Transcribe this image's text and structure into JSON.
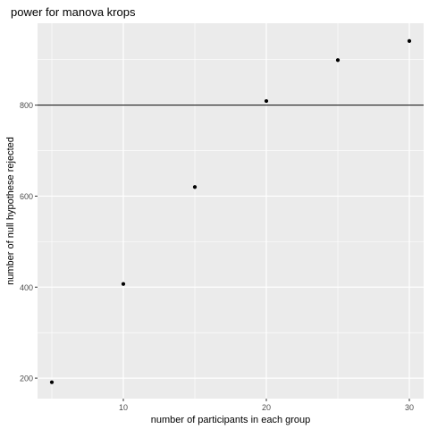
{
  "chart_data": {
    "type": "scatter",
    "title": "power for manova krops",
    "xlabel": "number of participants in each group",
    "ylabel": "number of null hypothese rejected",
    "x": [
      5,
      10,
      15,
      20,
      25,
      30
    ],
    "y": [
      191,
      407,
      620,
      809,
      899,
      941
    ],
    "xlim": [
      4.0,
      31.0
    ],
    "ylim": [
      155,
      980
    ],
    "xticks": [
      10,
      20,
      30
    ],
    "yticks": [
      200,
      400,
      600,
      800
    ],
    "hline": 800,
    "grid": true,
    "colors": {
      "panel": "#EBEBEB",
      "grid_major": "#FFFFFF",
      "point": "#000000",
      "hline": "#000000",
      "tick_text": "#4D4D4D",
      "title": "#000000"
    }
  }
}
